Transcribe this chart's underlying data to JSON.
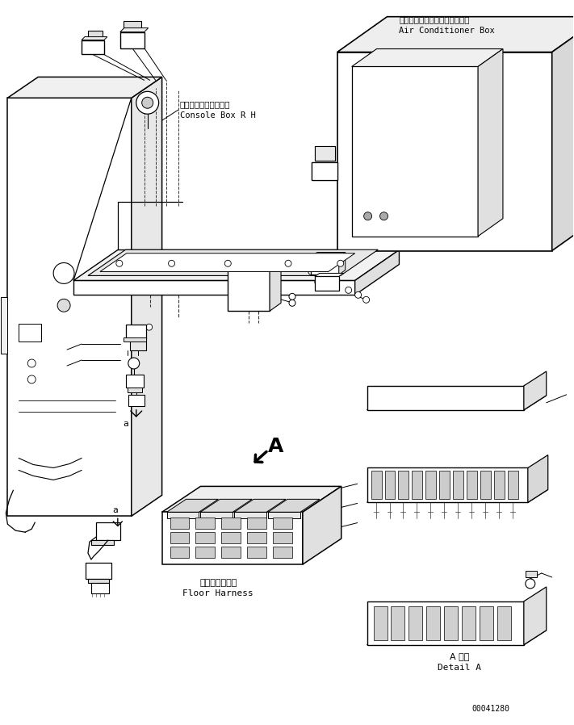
{
  "background_color": "#ffffff",
  "line_color": "#000000",
  "part_number": "00041280",
  "labels": {
    "air_conditioner_jp": "エアーコンディショナボックス",
    "air_conditioner_en": "Air Conditioner Box",
    "console_box_jp": "コンソールボックス右",
    "console_box_en": "Console Box R H",
    "floor_harness_jp": "フロアハーネス",
    "floor_harness_en": "Floor Harness",
    "detail_jp": "A 詳細",
    "detail_en": "Detail A",
    "label_A": "A",
    "label_a": "a"
  }
}
